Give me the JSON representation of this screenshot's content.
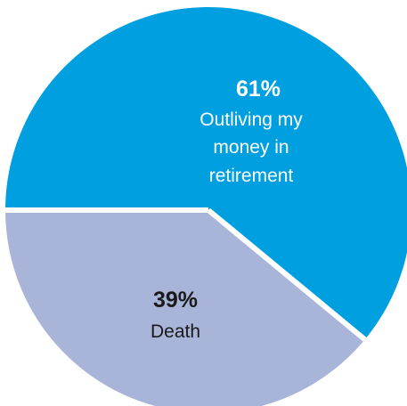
{
  "chart_data": {
    "type": "pie",
    "categories": [
      "Outliving my money in retirement",
      "Death"
    ],
    "values": [
      61,
      39
    ],
    "units": "%",
    "colors": [
      "#009fdf",
      "#a9b4d9"
    ],
    "value_labels": [
      "61%",
      "39%"
    ],
    "label_lines": [
      [
        "Outliving my",
        "money in",
        "retirement"
      ],
      [
        "Death"
      ]
    ],
    "label_colors": [
      "#ffffff",
      "#1a1a1a"
    ],
    "separator_color": "#ffffff",
    "legend": "none",
    "start": "left, going clockwise"
  }
}
